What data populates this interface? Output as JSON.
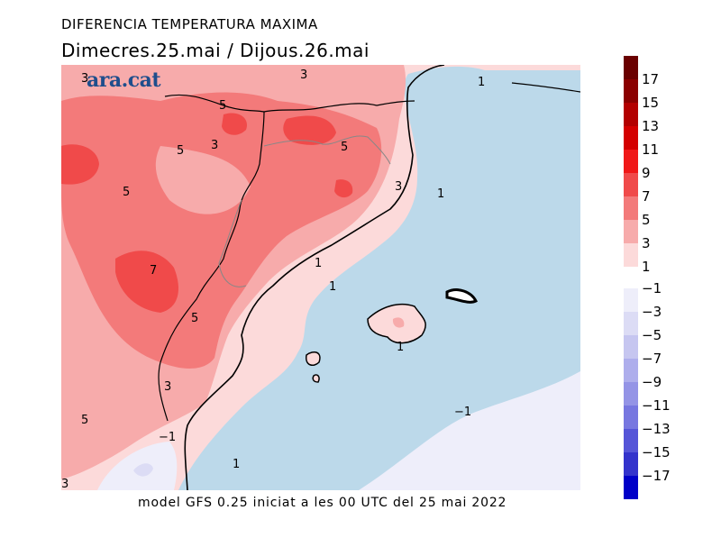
{
  "title_line1": "DIFERENCIA TEMPERATURA MAXIMA",
  "title_line2": "Dimecres.25.mai  /  Dijous.26.mai",
  "logo": "ara.cat",
  "footer": "model GFS 0.25 iniciat a les 00 UTC del 25 mai 2022",
  "colorbar": {
    "positive": [
      {
        "label": "17",
        "color": "#6a0000"
      },
      {
        "label": "15",
        "color": "#8b0000"
      },
      {
        "label": "13",
        "color": "#b30000"
      },
      {
        "label": "11",
        "color": "#d40000"
      },
      {
        "label": "9",
        "color": "#f01818"
      },
      {
        "label": "7",
        "color": "#f04a4a"
      },
      {
        "label": "5",
        "color": "#f37a7a"
      },
      {
        "label": "3",
        "color": "#f7abab"
      },
      {
        "label": "1",
        "color": "#fcdada"
      }
    ],
    "negative": [
      {
        "label": "−1",
        "color": "#eeeefa"
      },
      {
        "label": "−3",
        "color": "#dcdcf5"
      },
      {
        "label": "−5",
        "color": "#c6c6f0"
      },
      {
        "label": "−7",
        "color": "#aeaeec"
      },
      {
        "label": "−9",
        "color": "#9494e6"
      },
      {
        "label": "−11",
        "color": "#7777e0"
      },
      {
        "label": "−13",
        "color": "#5555d8"
      },
      {
        "label": "−15",
        "color": "#3333cc"
      },
      {
        "label": "−17",
        "color": "#0000c8"
      }
    ]
  },
  "contour_labels": [
    "3",
    "3",
    "1",
    "5",
    "5",
    "3",
    "5",
    "5",
    "3",
    "1",
    "7",
    "1",
    "1",
    "5",
    "1",
    "3",
    "5",
    "−1",
    "−1",
    "1",
    "3"
  ]
}
